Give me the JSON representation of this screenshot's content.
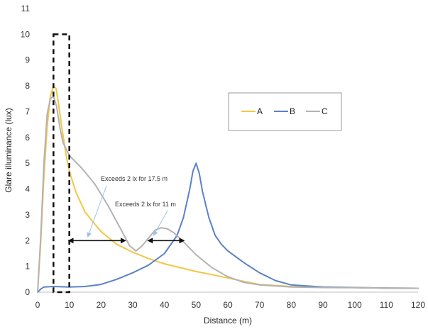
{
  "chart_data": {
    "type": "line",
    "xlabel": "Distance (m)",
    "ylabel": "Glare illuminance (lux)",
    "xlim": [
      0,
      120
    ],
    "ylim": [
      0,
      11
    ],
    "xticks": [
      "0",
      "10",
      "20",
      "30",
      "40",
      "50",
      "60",
      "70",
      "80",
      "90",
      "100",
      "110",
      "120"
    ],
    "yticks": [
      "0",
      "1",
      "2",
      "3",
      "4",
      "5",
      "6",
      "7",
      "8",
      "9",
      "10",
      "11"
    ],
    "grid": false,
    "legend_position": "top-right",
    "series": [
      {
        "name": "A",
        "color": "#f2c744",
        "x": [
          0,
          1,
          2,
          3,
          4,
          5,
          5.8,
          6.5,
          7.5,
          9,
          10,
          12,
          15,
          20,
          25,
          30,
          35,
          40,
          45,
          50,
          55,
          60,
          65,
          70,
          80,
          90,
          100,
          110,
          120
        ],
        "y": [
          0,
          2.0,
          4.5,
          6.4,
          7.6,
          8.0,
          7.9,
          7.4,
          6.5,
          5.3,
          4.7,
          3.9,
          3.1,
          2.35,
          1.85,
          1.55,
          1.3,
          1.1,
          0.95,
          0.8,
          0.68,
          0.55,
          0.42,
          0.3,
          0.22,
          0.2,
          0.18,
          0.16,
          0.15
        ]
      },
      {
        "name": "B",
        "color": "#5b82c7",
        "x": [
          0,
          1,
          2,
          5,
          10,
          15,
          20,
          25,
          30,
          35,
          40,
          44,
          46,
          48,
          49,
          50,
          51,
          52,
          54,
          56,
          58,
          60,
          65,
          70,
          75,
          80,
          90,
          100,
          110,
          120
        ],
        "y": [
          0,
          0.12,
          0.2,
          0.22,
          0.2,
          0.22,
          0.3,
          0.5,
          0.75,
          1.05,
          1.5,
          2.2,
          2.9,
          4.0,
          4.7,
          5.0,
          4.6,
          3.9,
          2.9,
          2.2,
          1.85,
          1.6,
          1.15,
          0.75,
          0.45,
          0.28,
          0.2,
          0.18,
          0.16,
          0.15
        ]
      },
      {
        "name": "C",
        "color": "#b3b3b3",
        "x": [
          0,
          1,
          2,
          3,
          4,
          5,
          6,
          7,
          8,
          10,
          14,
          18,
          22,
          26,
          29,
          31,
          33,
          35,
          37,
          39,
          41,
          43,
          46,
          50,
          55,
          60,
          65,
          70,
          80,
          90,
          100,
          110,
          120
        ],
        "y": [
          0,
          2.2,
          5.0,
          6.9,
          7.5,
          7.6,
          7.2,
          6.4,
          5.8,
          5.3,
          4.8,
          4.2,
          3.4,
          2.5,
          1.8,
          1.6,
          1.8,
          2.1,
          2.4,
          2.5,
          2.45,
          2.3,
          1.95,
          1.45,
          0.95,
          0.6,
          0.38,
          0.28,
          0.2,
          0.18,
          0.17,
          0.16,
          0.15
        ]
      }
    ],
    "annotations": [
      {
        "text": "Exceeds 2 lx for 17.5 m",
        "span_x": [
          10,
          27.5
        ],
        "y": 2
      },
      {
        "text": "Exceeds 2 lx for 11 m",
        "span_x": [
          35,
          46
        ],
        "y": 2
      }
    ],
    "highlight_box": {
      "x": [
        5,
        10
      ],
      "y": [
        0,
        10
      ]
    }
  }
}
